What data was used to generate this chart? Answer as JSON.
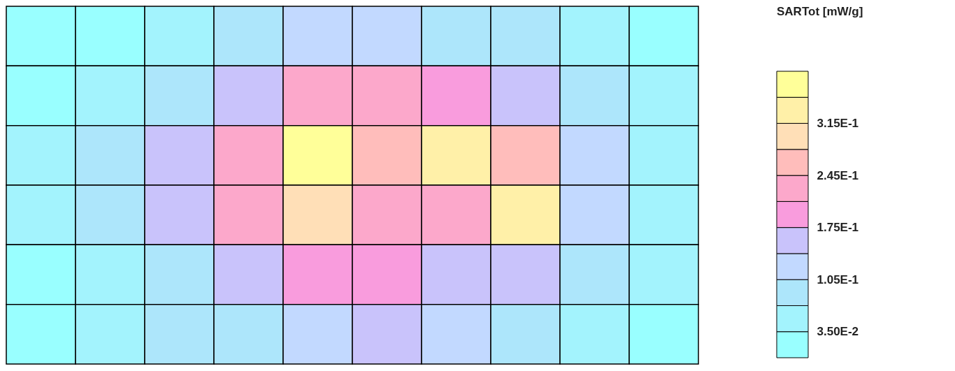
{
  "chart_data": {
    "type": "heatmap",
    "clabel": "SARTot [mW/g]",
    "categories": [
      null,
      null,
      null,
      null,
      null,
      null,
      null,
      null,
      null,
      null
    ],
    "y_categories": [
      null,
      null,
      null,
      null,
      null,
      null
    ],
    "cells": [
      [
        0.02,
        0.02,
        0.05,
        0.09,
        0.12,
        0.12,
        0.1,
        0.07,
        0.04,
        0.02
      ],
      [
        0.03,
        0.06,
        0.1,
        0.16,
        0.22,
        0.23,
        0.2,
        0.14,
        0.07,
        0.04
      ],
      [
        0.04,
        0.08,
        0.14,
        0.22,
        0.37,
        0.26,
        0.33,
        0.25,
        0.12,
        0.04
      ],
      [
        0.04,
        0.07,
        0.14,
        0.21,
        0.29,
        0.23,
        0.24,
        0.32,
        0.13,
        0.05
      ],
      [
        0.03,
        0.06,
        0.1,
        0.16,
        0.19,
        0.19,
        0.17,
        0.15,
        0.07,
        0.04
      ],
      [
        0.02,
        0.04,
        0.07,
        0.1,
        0.12,
        0.16,
        0.12,
        0.08,
        0.05,
        0.03
      ]
    ],
    "clim": [
      0,
      0.385
    ],
    "cticks": [
      {
        "value": 0.035,
        "label": "3.50E-2"
      },
      {
        "value": 0.105,
        "label": "1.05E-1"
      },
      {
        "value": 0.175,
        "label": "1.75E-1"
      },
      {
        "value": 0.245,
        "label": "2.45E-1"
      },
      {
        "value": 0.315,
        "label": "3.15E-1"
      }
    ],
    "colors": [
      "#99ffff",
      "#a3f3fd",
      "#ade6fb",
      "#c2d9ff",
      "#c9c3fb",
      "#f99cdd",
      "#fca8cb",
      "#ffbdbb",
      "#ffdfb7",
      "#fff0a8",
      "#ffff99"
    ],
    "tick_labels": false
  }
}
